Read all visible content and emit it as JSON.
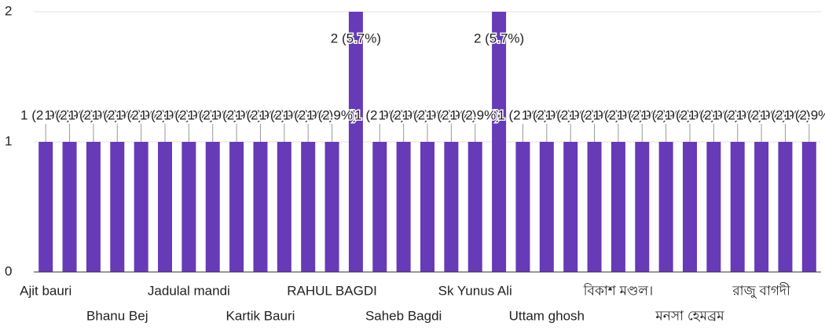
{
  "chart_data": {
    "type": "bar",
    "categories": [
      "Ajit bauri",
      null,
      null,
      "Bhanu Bej",
      null,
      null,
      "Jadulal mandi",
      null,
      null,
      "Kartik Bauri",
      null,
      null,
      "RAHUL BAGDI",
      null,
      null,
      "Saheb Bagdi",
      null,
      null,
      "Sk Yunus Ali",
      null,
      null,
      "Uttam ghosh",
      null,
      null,
      "বিকাশ মণ্ডল।",
      null,
      null,
      "মনসা হেমব্রম",
      null,
      null,
      "রাজু বাগদী",
      null,
      null
    ],
    "values": [
      1,
      1,
      1,
      1,
      1,
      1,
      1,
      1,
      1,
      1,
      1,
      1,
      1,
      2,
      1,
      1,
      1,
      1,
      1,
      2,
      1,
      1,
      1,
      1,
      1,
      1,
      1,
      1,
      1,
      1,
      1,
      1,
      1
    ],
    "value_labels": [
      "1 (2.9%)",
      "1 (2.9%)",
      "1 (2.9%)",
      "1 (2.9%)",
      "1 (2.9%)",
      "1 (2.9%)",
      "1 (2.9%)",
      "1 (2.9%)",
      "1 (2.9%)",
      "1 (2.9%)",
      "1 (2.9%)",
      "1 (2.9%)",
      "1 (2.9%)",
      "2 (5.7%)",
      "1 (2.9%)",
      "1 (2.9%)",
      "1 (2.9%)",
      "1 (2.9%)",
      "1 (2.9%)",
      "2 (5.7%)",
      "1 (2.9%)",
      "1 (2.9%)",
      "1 (2.9%)",
      "1 (2.9%)",
      "1 (2.9%)",
      "1 (2.9%)",
      "1 (2.9%)",
      "1 (2.9%)",
      "1 (2.9%)",
      "1 (2.9%)",
      "1 (2.9%)",
      "1 (2.9%)",
      "1 (2.9%)"
    ],
    "color": "#673ab7",
    "ylim": [
      0,
      2
    ],
    "yticks": [
      0,
      1,
      2
    ],
    "grid": true
  }
}
